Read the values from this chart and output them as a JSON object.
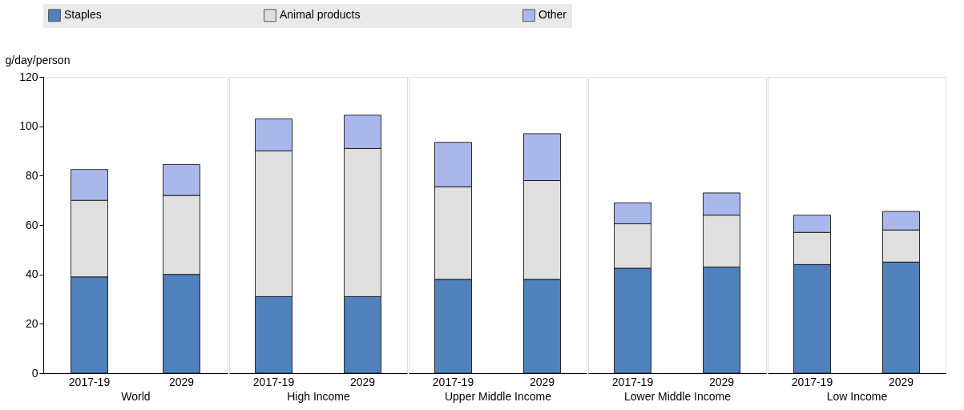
{
  "chart_data": [
    {
      "type": "bar",
      "stacked": true,
      "ylabel": "g/day/person",
      "xlabel": "World",
      "categories": [
        "2017-19",
        "2029"
      ],
      "ylim": [
        0,
        120
      ],
      "yticks": [
        0,
        20,
        40,
        60,
        80,
        100,
        120
      ],
      "legend": "top",
      "series": [
        {
          "name": "Staples",
          "color": "#4f81bd",
          "values": [
            39,
            40
          ]
        },
        {
          "name": "Animal products",
          "color": "#dfdfdf",
          "values": [
            31,
            32
          ]
        },
        {
          "name": "Other",
          "color": "#a9b7ea",
          "values": [
            12.5,
            12.5
          ]
        }
      ]
    },
    {
      "type": "bar",
      "stacked": true,
      "xlabel": "High Income",
      "categories": [
        "2017-19",
        "2029"
      ],
      "ylim": [
        0,
        120
      ],
      "tick_labels": "x",
      "series": [
        {
          "color": "#4f81bd",
          "values": [
            31,
            31
          ]
        },
        {
          "color": "#dfdfdf",
          "values": [
            59,
            60
          ]
        },
        {
          "color": "#a9b7ea",
          "values": [
            13,
            13.5
          ]
        }
      ]
    },
    {
      "type": "bar",
      "stacked": true,
      "xlabel": "Upper Middle Income",
      "categories": [
        "2017-19",
        "2029"
      ],
      "ylim": [
        0,
        120
      ],
      "tick_labels": "x",
      "series": [
        {
          "color": "#4f81bd",
          "values": [
            38,
            38
          ]
        },
        {
          "color": "#dfdfdf",
          "values": [
            37.5,
            40
          ]
        },
        {
          "color": "#a9b7ea",
          "values": [
            18,
            19
          ]
        }
      ]
    },
    {
      "type": "bar",
      "stacked": true,
      "xlabel": "Lower Middle Income",
      "categories": [
        "2017-19",
        "2029"
      ],
      "ylim": [
        0,
        120
      ],
      "tick_labels": "x",
      "series": [
        {
          "color": "#4f81bd",
          "values": [
            42.5,
            43
          ]
        },
        {
          "color": "#dfdfdf",
          "values": [
            18,
            21
          ]
        },
        {
          "color": "#a9b7ea",
          "values": [
            8.5,
            9
          ]
        }
      ]
    },
    {
      "type": "bar",
      "stacked": true,
      "xlabel": "Low Income",
      "categories": [
        "2017-19",
        "2029"
      ],
      "ylim": [
        0,
        120
      ],
      "tick_labels": "x",
      "series": [
        {
          "color": "#4f81bd",
          "values": [
            44,
            45
          ]
        },
        {
          "color": "#dfdfdf",
          "values": [
            13,
            13
          ]
        },
        {
          "color": "#a9b7ea",
          "values": [
            7,
            7.5
          ]
        }
      ]
    }
  ]
}
